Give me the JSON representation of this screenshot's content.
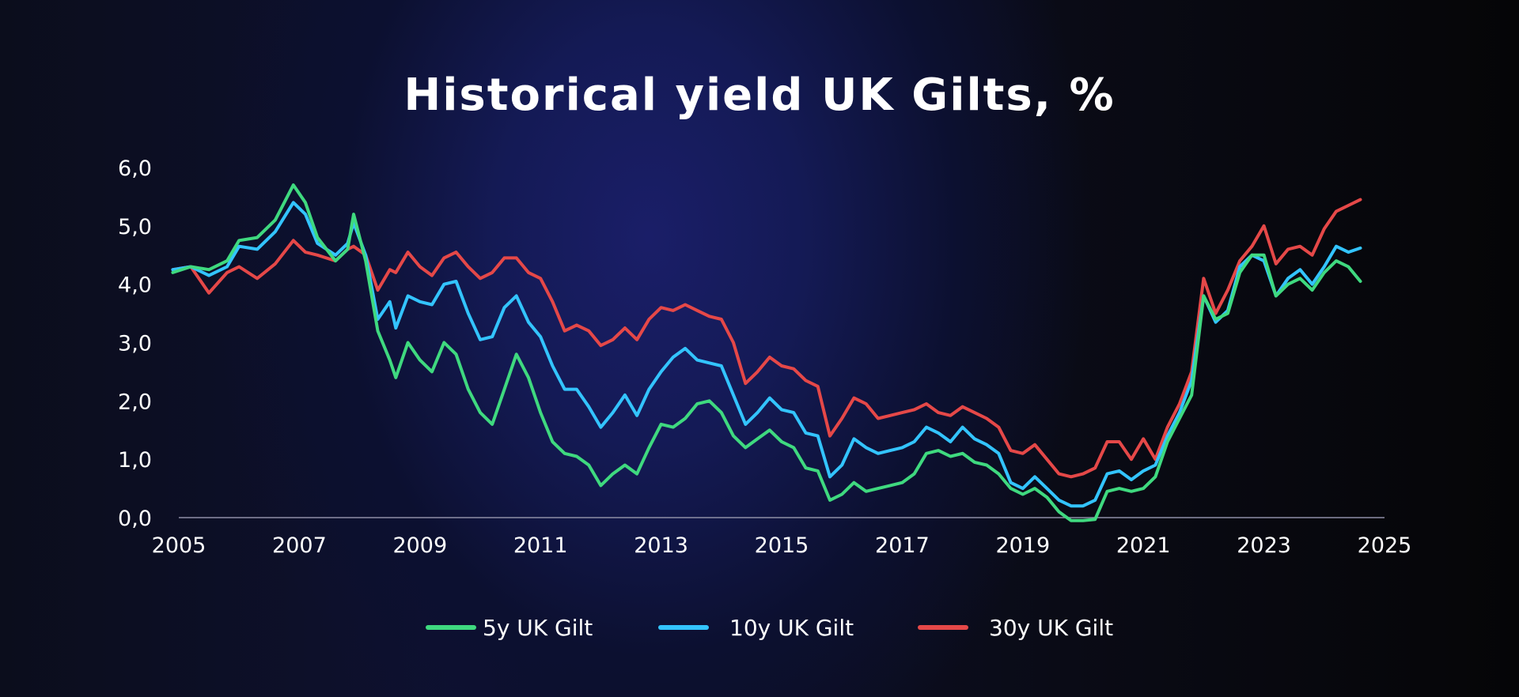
{
  "chart_data": {
    "type": "line",
    "title": "Historical yield UK Gilts, %",
    "xlabel": "",
    "ylabel": "",
    "x_ticks": [
      "2005",
      "2007",
      "2009",
      "2011",
      "2013",
      "2015",
      "2017",
      "2019",
      "2021",
      "2023",
      "2025"
    ],
    "y_ticks": [
      "0,0",
      "1,0",
      "2,0",
      "3,0",
      "4,0",
      "5,0",
      "6,0"
    ],
    "xlim": [
      2005,
      2025
    ],
    "ylim": [
      0,
      6
    ],
    "grid": false,
    "legend_position": "bottom",
    "series": [
      {
        "name": "5y UK Gilt",
        "color": "#3fd97f",
        "points": [
          [
            2004.9,
            4.2
          ],
          [
            2005.2,
            4.3
          ],
          [
            2005.5,
            4.25
          ],
          [
            2005.8,
            4.4
          ],
          [
            2006.0,
            4.75
          ],
          [
            2006.3,
            4.8
          ],
          [
            2006.6,
            5.1
          ],
          [
            2006.9,
            5.7
          ],
          [
            2007.1,
            5.4
          ],
          [
            2007.3,
            4.8
          ],
          [
            2007.6,
            4.4
          ],
          [
            2007.8,
            4.6
          ],
          [
            2007.9,
            5.2
          ],
          [
            2008.1,
            4.4
          ],
          [
            2008.3,
            3.2
          ],
          [
            2008.5,
            2.7
          ],
          [
            2008.6,
            2.4
          ],
          [
            2008.8,
            3.0
          ],
          [
            2009.0,
            2.7
          ],
          [
            2009.2,
            2.5
          ],
          [
            2009.4,
            3.0
          ],
          [
            2009.6,
            2.8
          ],
          [
            2009.8,
            2.2
          ],
          [
            2010.0,
            1.8
          ],
          [
            2010.2,
            1.6
          ],
          [
            2010.4,
            2.2
          ],
          [
            2010.6,
            2.8
          ],
          [
            2010.8,
            2.4
          ],
          [
            2011.0,
            1.8
          ],
          [
            2011.2,
            1.3
          ],
          [
            2011.4,
            1.1
          ],
          [
            2011.6,
            1.05
          ],
          [
            2011.8,
            0.9
          ],
          [
            2012.0,
            0.55
          ],
          [
            2012.2,
            0.75
          ],
          [
            2012.4,
            0.9
          ],
          [
            2012.6,
            0.75
          ],
          [
            2012.8,
            1.2
          ],
          [
            2013.0,
            1.6
          ],
          [
            2013.2,
            1.55
          ],
          [
            2013.4,
            1.7
          ],
          [
            2013.6,
            1.95
          ],
          [
            2013.8,
            2.0
          ],
          [
            2014.0,
            1.8
          ],
          [
            2014.2,
            1.4
          ],
          [
            2014.4,
            1.2
          ],
          [
            2014.6,
            1.35
          ],
          [
            2014.8,
            1.5
          ],
          [
            2015.0,
            1.3
          ],
          [
            2015.2,
            1.2
          ],
          [
            2015.4,
            0.85
          ],
          [
            2015.6,
            0.8
          ],
          [
            2015.8,
            0.3
          ],
          [
            2016.0,
            0.4
          ],
          [
            2016.2,
            0.6
          ],
          [
            2016.4,
            0.45
          ],
          [
            2016.6,
            0.5
          ],
          [
            2016.8,
            0.55
          ],
          [
            2017.0,
            0.6
          ],
          [
            2017.2,
            0.75
          ],
          [
            2017.4,
            1.1
          ],
          [
            2017.6,
            1.15
          ],
          [
            2017.8,
            1.05
          ],
          [
            2018.0,
            1.1
          ],
          [
            2018.2,
            0.95
          ],
          [
            2018.4,
            0.9
          ],
          [
            2018.6,
            0.75
          ],
          [
            2018.8,
            0.5
          ],
          [
            2019.0,
            0.4
          ],
          [
            2019.2,
            0.5
          ],
          [
            2019.4,
            0.35
          ],
          [
            2019.6,
            0.1
          ],
          [
            2019.8,
            -0.05
          ],
          [
            2020.0,
            -0.05
          ],
          [
            2020.2,
            -0.03
          ],
          [
            2020.4,
            0.45
          ],
          [
            2020.6,
            0.5
          ],
          [
            2020.8,
            0.45
          ],
          [
            2021.0,
            0.5
          ],
          [
            2021.2,
            0.7
          ],
          [
            2021.4,
            1.3
          ],
          [
            2021.6,
            1.7
          ],
          [
            2021.8,
            2.1
          ],
          [
            2022.0,
            3.8
          ],
          [
            2022.2,
            3.4
          ],
          [
            2022.4,
            3.5
          ],
          [
            2022.6,
            4.2
          ],
          [
            2022.8,
            4.5
          ],
          [
            2023.0,
            4.5
          ],
          [
            2023.2,
            3.8
          ],
          [
            2023.4,
            4.0
          ],
          [
            2023.6,
            4.1
          ],
          [
            2023.8,
            3.9
          ],
          [
            2024.0,
            4.2
          ],
          [
            2024.2,
            4.4
          ],
          [
            2024.4,
            4.3
          ],
          [
            2024.6,
            4.05
          ]
        ]
      },
      {
        "name": "10y UK Gilt",
        "color": "#33c4ff",
        "points": [
          [
            2004.9,
            4.25
          ],
          [
            2005.2,
            4.3
          ],
          [
            2005.5,
            4.15
          ],
          [
            2005.8,
            4.3
          ],
          [
            2006.0,
            4.65
          ],
          [
            2006.3,
            4.6
          ],
          [
            2006.6,
            4.9
          ],
          [
            2006.9,
            5.4
          ],
          [
            2007.1,
            5.2
          ],
          [
            2007.3,
            4.7
          ],
          [
            2007.6,
            4.5
          ],
          [
            2007.8,
            4.7
          ],
          [
            2007.9,
            5.05
          ],
          [
            2008.1,
            4.5
          ],
          [
            2008.3,
            3.4
          ],
          [
            2008.5,
            3.7
          ],
          [
            2008.6,
            3.25
          ],
          [
            2008.8,
            3.8
          ],
          [
            2009.0,
            3.7
          ],
          [
            2009.2,
            3.65
          ],
          [
            2009.4,
            4.0
          ],
          [
            2009.6,
            4.05
          ],
          [
            2009.8,
            3.5
          ],
          [
            2010.0,
            3.05
          ],
          [
            2010.2,
            3.1
          ],
          [
            2010.4,
            3.6
          ],
          [
            2010.6,
            3.8
          ],
          [
            2010.8,
            3.35
          ],
          [
            2011.0,
            3.1
          ],
          [
            2011.2,
            2.6
          ],
          [
            2011.4,
            2.2
          ],
          [
            2011.6,
            2.2
          ],
          [
            2011.8,
            1.9
          ],
          [
            2012.0,
            1.55
          ],
          [
            2012.2,
            1.8
          ],
          [
            2012.4,
            2.1
          ],
          [
            2012.6,
            1.75
          ],
          [
            2012.8,
            2.2
          ],
          [
            2013.0,
            2.5
          ],
          [
            2013.2,
            2.75
          ],
          [
            2013.4,
            2.9
          ],
          [
            2013.6,
            2.7
          ],
          [
            2013.8,
            2.65
          ],
          [
            2014.0,
            2.6
          ],
          [
            2014.2,
            2.1
          ],
          [
            2014.4,
            1.6
          ],
          [
            2014.6,
            1.8
          ],
          [
            2014.8,
            2.05
          ],
          [
            2015.0,
            1.85
          ],
          [
            2015.2,
            1.8
          ],
          [
            2015.4,
            1.45
          ],
          [
            2015.6,
            1.4
          ],
          [
            2015.8,
            0.7
          ],
          [
            2016.0,
            0.9
          ],
          [
            2016.2,
            1.35
          ],
          [
            2016.4,
            1.2
          ],
          [
            2016.6,
            1.1
          ],
          [
            2016.8,
            1.15
          ],
          [
            2017.0,
            1.2
          ],
          [
            2017.2,
            1.3
          ],
          [
            2017.4,
            1.55
          ],
          [
            2017.6,
            1.45
          ],
          [
            2017.8,
            1.3
          ],
          [
            2018.0,
            1.55
          ],
          [
            2018.2,
            1.35
          ],
          [
            2018.4,
            1.25
          ],
          [
            2018.6,
            1.1
          ],
          [
            2018.8,
            0.6
          ],
          [
            2019.0,
            0.5
          ],
          [
            2019.2,
            0.7
          ],
          [
            2019.4,
            0.5
          ],
          [
            2019.6,
            0.3
          ],
          [
            2019.8,
            0.2
          ],
          [
            2020.0,
            0.2
          ],
          [
            2020.2,
            0.3
          ],
          [
            2020.4,
            0.75
          ],
          [
            2020.6,
            0.8
          ],
          [
            2020.8,
            0.65
          ],
          [
            2021.0,
            0.8
          ],
          [
            2021.2,
            0.9
          ],
          [
            2021.4,
            1.4
          ],
          [
            2021.6,
            1.8
          ],
          [
            2021.8,
            2.35
          ],
          [
            2022.0,
            3.8
          ],
          [
            2022.2,
            3.35
          ],
          [
            2022.4,
            3.55
          ],
          [
            2022.6,
            4.3
          ],
          [
            2022.8,
            4.5
          ],
          [
            2023.0,
            4.4
          ],
          [
            2023.2,
            3.8
          ],
          [
            2023.4,
            4.1
          ],
          [
            2023.6,
            4.25
          ],
          [
            2023.8,
            4.0
          ],
          [
            2024.0,
            4.3
          ],
          [
            2024.2,
            4.65
          ],
          [
            2024.4,
            4.55
          ],
          [
            2024.6,
            4.62
          ]
        ]
      },
      {
        "name": "30y UK Gilt",
        "color": "#e54848",
        "points": [
          [
            2004.9,
            4.25
          ],
          [
            2005.2,
            4.3
          ],
          [
            2005.5,
            3.85
          ],
          [
            2005.8,
            4.2
          ],
          [
            2006.0,
            4.3
          ],
          [
            2006.3,
            4.1
          ],
          [
            2006.6,
            4.35
          ],
          [
            2006.9,
            4.75
          ],
          [
            2007.1,
            4.55
          ],
          [
            2007.3,
            4.5
          ],
          [
            2007.6,
            4.4
          ],
          [
            2007.8,
            4.6
          ],
          [
            2007.9,
            4.65
          ],
          [
            2008.1,
            4.5
          ],
          [
            2008.3,
            3.9
          ],
          [
            2008.5,
            4.25
          ],
          [
            2008.6,
            4.2
          ],
          [
            2008.8,
            4.55
          ],
          [
            2009.0,
            4.3
          ],
          [
            2009.2,
            4.15
          ],
          [
            2009.4,
            4.45
          ],
          [
            2009.6,
            4.55
          ],
          [
            2009.8,
            4.3
          ],
          [
            2010.0,
            4.1
          ],
          [
            2010.2,
            4.2
          ],
          [
            2010.4,
            4.45
          ],
          [
            2010.6,
            4.45
          ],
          [
            2010.8,
            4.2
          ],
          [
            2011.0,
            4.1
          ],
          [
            2011.2,
            3.7
          ],
          [
            2011.4,
            3.2
          ],
          [
            2011.6,
            3.3
          ],
          [
            2011.8,
            3.2
          ],
          [
            2012.0,
            2.95
          ],
          [
            2012.2,
            3.05
          ],
          [
            2012.4,
            3.25
          ],
          [
            2012.6,
            3.05
          ],
          [
            2012.8,
            3.4
          ],
          [
            2013.0,
            3.6
          ],
          [
            2013.2,
            3.55
          ],
          [
            2013.4,
            3.65
          ],
          [
            2013.6,
            3.55
          ],
          [
            2013.8,
            3.45
          ],
          [
            2014.0,
            3.4
          ],
          [
            2014.2,
            3.0
          ],
          [
            2014.4,
            2.3
          ],
          [
            2014.6,
            2.5
          ],
          [
            2014.8,
            2.75
          ],
          [
            2015.0,
            2.6
          ],
          [
            2015.2,
            2.55
          ],
          [
            2015.4,
            2.35
          ],
          [
            2015.6,
            2.25
          ],
          [
            2015.8,
            1.4
          ],
          [
            2016.0,
            1.7
          ],
          [
            2016.2,
            2.05
          ],
          [
            2016.4,
            1.95
          ],
          [
            2016.6,
            1.7
          ],
          [
            2016.8,
            1.75
          ],
          [
            2017.0,
            1.8
          ],
          [
            2017.2,
            1.85
          ],
          [
            2017.4,
            1.95
          ],
          [
            2017.6,
            1.8
          ],
          [
            2017.8,
            1.75
          ],
          [
            2018.0,
            1.9
          ],
          [
            2018.2,
            1.8
          ],
          [
            2018.4,
            1.7
          ],
          [
            2018.6,
            1.55
          ],
          [
            2018.8,
            1.15
          ],
          [
            2019.0,
            1.1
          ],
          [
            2019.2,
            1.25
          ],
          [
            2019.4,
            1.0
          ],
          [
            2019.6,
            0.75
          ],
          [
            2019.8,
            0.7
          ],
          [
            2020.0,
            0.75
          ],
          [
            2020.2,
            0.85
          ],
          [
            2020.4,
            1.3
          ],
          [
            2020.6,
            1.3
          ],
          [
            2020.8,
            1.0
          ],
          [
            2021.0,
            1.35
          ],
          [
            2021.2,
            1.0
          ],
          [
            2021.4,
            1.55
          ],
          [
            2021.6,
            1.95
          ],
          [
            2021.8,
            2.5
          ],
          [
            2022.0,
            4.1
          ],
          [
            2022.2,
            3.5
          ],
          [
            2022.4,
            3.9
          ],
          [
            2022.6,
            4.4
          ],
          [
            2022.8,
            4.65
          ],
          [
            2023.0,
            5.0
          ],
          [
            2023.2,
            4.35
          ],
          [
            2023.4,
            4.6
          ],
          [
            2023.6,
            4.65
          ],
          [
            2023.8,
            4.5
          ],
          [
            2024.0,
            4.95
          ],
          [
            2024.2,
            5.25
          ],
          [
            2024.4,
            5.35
          ],
          [
            2024.6,
            5.45
          ]
        ]
      }
    ]
  }
}
